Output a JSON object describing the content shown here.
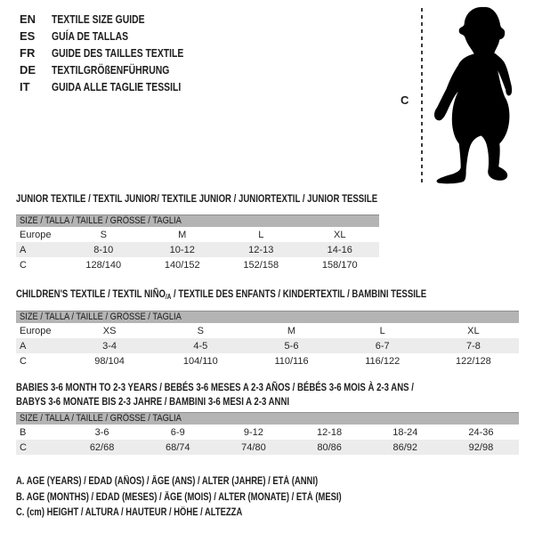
{
  "languages": [
    {
      "code": "EN",
      "title": "TEXTILE SIZE GUIDE"
    },
    {
      "code": "ES",
      "title": "GUÍA DE TALLAS"
    },
    {
      "code": "FR",
      "title": "GUIDE DES TAILLES TEXTILE"
    },
    {
      "code": "DE",
      "title": "TEXTILGRÖßENFÜHRUNG"
    },
    {
      "code": "IT",
      "title": "GUIDA ALLE TAGLIE TESSILI"
    }
  ],
  "figure": {
    "measure_label": "C",
    "icon": "toddler-silhouette"
  },
  "tables": [
    {
      "title": "JUNIOR TEXTILE / TEXTIL JUNIOR/ TEXTILE JUNIOR / JUNIORTEXTIL / JUNIOR TESSILE",
      "size_header": "SIZE / TALLA / TAILLE / GRÖSSE / TAGLIA",
      "rows": [
        {
          "label": "Europe",
          "shaded": false,
          "values": [
            "S",
            "M",
            "L",
            "XL"
          ]
        },
        {
          "label": "A",
          "shaded": true,
          "values": [
            "8-10",
            "10-12",
            "12-13",
            "14-16"
          ]
        },
        {
          "label": "C",
          "shaded": false,
          "values": [
            "128/140",
            "140/152",
            "152/158",
            "158/170"
          ]
        }
      ]
    },
    {
      "title": {
        "pre": "CHILDREN'S TEXTILE / TEXTIL NIÑO",
        "sub": "/A",
        "post": " / TEXTILE DES ENFANTS / KINDERTEXTIL / BAMBINI TESSILE"
      },
      "size_header": "SIZE / TALLA / TAILLE / GRÖSSE / TAGLIA",
      "rows": [
        {
          "label": "Europe",
          "shaded": false,
          "values": [
            "XS",
            "S",
            "M",
            "L",
            "XL"
          ]
        },
        {
          "label": "A",
          "shaded": true,
          "values": [
            "3-4",
            "4-5",
            "5-6",
            "6-7",
            "7-8"
          ]
        },
        {
          "label": "C",
          "shaded": false,
          "values": [
            "98/104",
            "104/110",
            "110/116",
            "116/122",
            "122/128"
          ]
        }
      ]
    },
    {
      "title_lines": [
        "BABIES 3-6 MONTH TO 2-3 YEARS / BEBÉS 3-6 MESES A 2-3 AÑOS / BÉBÉS 3-6 MOIS À 2-3 ANS /",
        "BABYS 3-6 MONATE BIS 2-3 JAHRE / BAMBINI 3-6 MESI A 2-3 ANNI"
      ],
      "size_header": "SIZE / TALLA / TAILLE / GRÖSSE / TAGLIA",
      "rows": [
        {
          "label": "B",
          "shaded": false,
          "values": [
            "3-6",
            "6-9",
            "9-12",
            "12-18",
            "18-24",
            "24-36"
          ]
        },
        {
          "label": "C",
          "shaded": true,
          "values": [
            "62/68",
            "68/74",
            "74/80",
            "80/86",
            "86/92",
            "92/98"
          ]
        }
      ]
    }
  ],
  "legend": [
    "A. AGE (YEARS) / EDAD (AÑOS) / ÂGE (ANS) / ALTER (JAHRE) / ETÀ (ANNI)",
    "B. AGE (MONTHS) / EDAD (MESES) / ÂGE (MOIS) / ALTER (MONATE) / ETÀ (MESI)",
    "C. (cm) HEIGHT / ALTURA / HAUTEUR / HÖHE / ALTEZZA"
  ],
  "colors": {
    "size_bar_bg": "#b4b4b4",
    "size_bar_border": "#8f8f8f",
    "row_shaded_bg": "#ececec",
    "text": "#1d1d1d",
    "silhouette": "#000000",
    "measure_line": "#3a3a3a"
  }
}
